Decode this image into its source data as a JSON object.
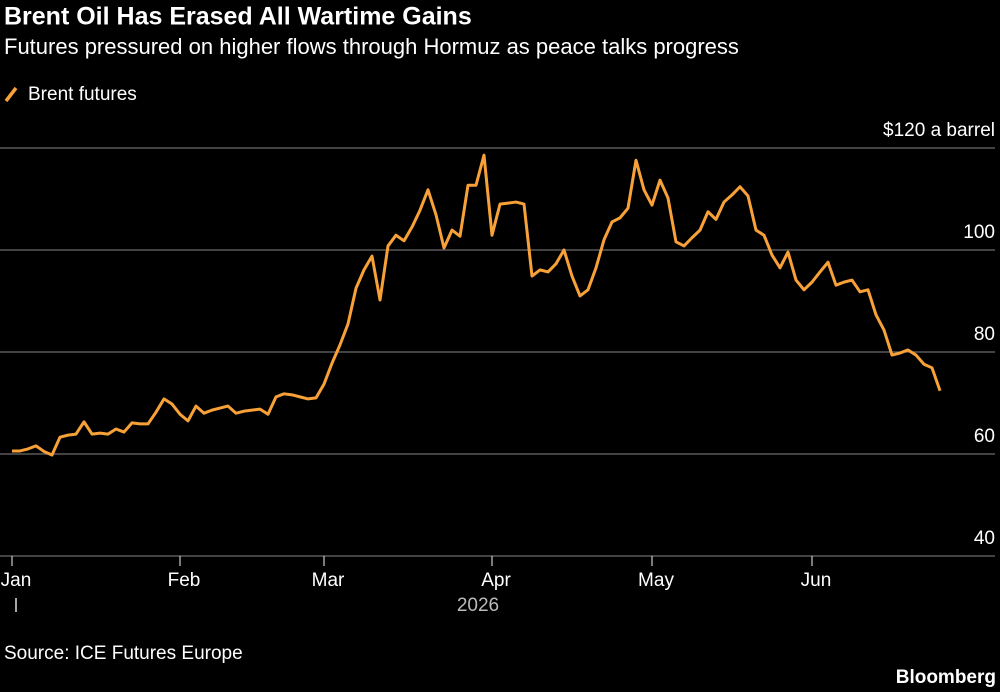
{
  "chart_data": {
    "type": "line",
    "title": "Brent Oil Has Erased All Wartime Gains",
    "subtitle": "Futures pressured on higher flows through Hormuz as peace talks progress",
    "categories": [
      "Jan",
      null,
      null,
      null,
      null,
      null,
      null,
      null,
      null,
      null,
      null,
      null,
      null,
      null,
      null,
      null,
      null,
      null,
      null,
      null,
      null,
      "Feb",
      null,
      null,
      null,
      null,
      null,
      null,
      null,
      null,
      null,
      null,
      null,
      null,
      null,
      null,
      null,
      null,
      null,
      "Mar",
      null,
      null,
      null,
      null,
      null,
      null,
      null,
      null,
      null,
      null,
      null,
      null,
      null,
      null,
      null,
      null,
      null,
      null,
      null,
      null,
      "Apr",
      null,
      null,
      null,
      null,
      null,
      null,
      null,
      null,
      null,
      null,
      null,
      null,
      null,
      null,
      null,
      null,
      null,
      null,
      null,
      "May",
      null,
      null,
      null,
      null,
      null,
      null,
      null,
      null,
      null,
      null,
      null,
      null,
      null,
      null,
      null,
      null,
      null,
      null,
      null,
      "Jun",
      null,
      null,
      null,
      null,
      null,
      null,
      null,
      null,
      null,
      null,
      null,
      null,
      null,
      null,
      null,
      null
    ],
    "series": [
      {
        "name": "Brent futures",
        "color": "#f7a138",
        "values": [
          60.6,
          60.6,
          61.0,
          61.6,
          60.5,
          59.8,
          63.3,
          63.7,
          63.9,
          66.3,
          63.9,
          64.1,
          63.9,
          64.9,
          64.3,
          66.1,
          65.9,
          65.9,
          68.2,
          70.8,
          69.8,
          67.8,
          66.5,
          69.4,
          68.0,
          68.6,
          69.0,
          69.4,
          68.0,
          68.4,
          68.6,
          68.8,
          67.8,
          71.2,
          71.8,
          71.6,
          71.2,
          70.8,
          71.0,
          73.7,
          77.8,
          81.4,
          85.5,
          92.5,
          96.1,
          98.8,
          90.2,
          100.8,
          102.9,
          101.8,
          104.5,
          107.8,
          111.8,
          106.9,
          100.4,
          103.9,
          102.7,
          112.7,
          112.7,
          118.6,
          102.9,
          109.0,
          109.2,
          109.4,
          109.0,
          94.9,
          96.1,
          95.7,
          97.3,
          100.0,
          94.9,
          91.0,
          92.2,
          96.5,
          102.0,
          105.5,
          106.3,
          108.2,
          117.6,
          111.8,
          108.8,
          113.7,
          110.2,
          101.6,
          100.8,
          102.4,
          103.9,
          107.5,
          106.0,
          109.4,
          110.8,
          112.4,
          110.6,
          103.9,
          102.9,
          99.0,
          96.5,
          99.6,
          94.1,
          92.2,
          93.7,
          95.7,
          97.6,
          93.1,
          93.7,
          94.1,
          91.8,
          92.2,
          87.3,
          84.3,
          79.4,
          79.8,
          80.4,
          79.4,
          77.6,
          76.9,
          72.4
        ]
      }
    ],
    "xlabel": "2026",
    "ylim": [
      40,
      120
    ],
    "yticks": [
      40,
      60,
      80,
      100,
      {
        "value": 120,
        "label": "$120 a barrel"
      }
    ],
    "grid": true,
    "source": "Source: ICE Futures Europe",
    "credit": "Bloomberg"
  }
}
